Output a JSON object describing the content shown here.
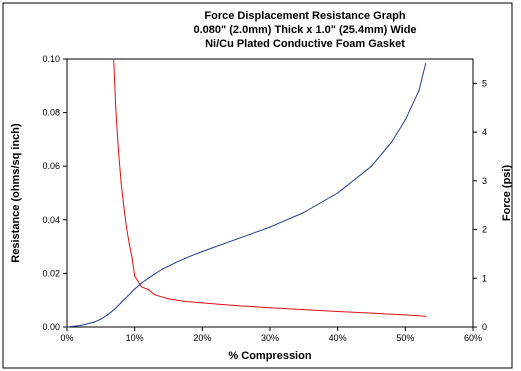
{
  "chart_data": {
    "type": "line",
    "title": [
      "Force Displacement Resistance Graph",
      "0.080\" (2.0mm) Thick x 1.0\" (25.4mm) Wide",
      "Ni/Cu Plated Conductive Foam Gasket"
    ],
    "xlabel": "% Compression",
    "ylabel_left": "Resistance (ohms/sq inch)",
    "ylabel_right": "Force (psi)",
    "xlim": [
      0,
      60
    ],
    "ylim_left": [
      0,
      0.1
    ],
    "ylim_right": [
      0,
      5.5
    ],
    "x_ticks": [
      "0%",
      "10%",
      "20%",
      "30%",
      "40%",
      "50%",
      "60%"
    ],
    "x_tick_values": [
      0,
      10,
      20,
      30,
      40,
      50,
      60
    ],
    "y_left_ticks": [
      "0.00",
      "0.02",
      "0.04",
      "0.06",
      "0.08",
      "0.10"
    ],
    "y_left_tick_values": [
      0,
      0.02,
      0.04,
      0.06,
      0.08,
      0.1
    ],
    "y_right_ticks": [
      "0",
      "1",
      "2",
      "3",
      "4",
      "5"
    ],
    "y_right_tick_values": [
      0,
      1,
      2,
      3,
      4,
      5
    ],
    "grid": false,
    "legend": "none",
    "series": [
      {
        "axis": "left",
        "color": "#e01010",
        "x": [
          6.9,
          7.2,
          7.6,
          8.0,
          8.4,
          8.8,
          9.2,
          9.6,
          10.0,
          10.5,
          11.0,
          12.0,
          13.0,
          15.0,
          17.5,
          20.0,
          25.0,
          30.0,
          35.0,
          40.0,
          45.0,
          50.0,
          53.0
        ],
        "y": [
          0.1,
          0.082,
          0.066,
          0.054,
          0.045,
          0.037,
          0.031,
          0.026,
          0.019,
          0.017,
          0.015,
          0.014,
          0.012,
          0.0105,
          0.0095,
          0.009,
          0.008,
          0.0072,
          0.0065,
          0.0058,
          0.0052,
          0.0045,
          0.004
        ]
      },
      {
        "axis": "right",
        "color": "#1f3d8c",
        "x": [
          0,
          2,
          4,
          5,
          6,
          7,
          8,
          9,
          10,
          11,
          12,
          14,
          16,
          18,
          20,
          25,
          30,
          35,
          40,
          45,
          48,
          50,
          52,
          53
        ],
        "y": [
          0,
          0.03,
          0.1,
          0.16,
          0.25,
          0.36,
          0.5,
          0.64,
          0.78,
          0.9,
          1.0,
          1.18,
          1.32,
          1.44,
          1.55,
          1.8,
          2.05,
          2.35,
          2.75,
          3.3,
          3.8,
          4.25,
          4.85,
          5.4
        ]
      }
    ]
  }
}
